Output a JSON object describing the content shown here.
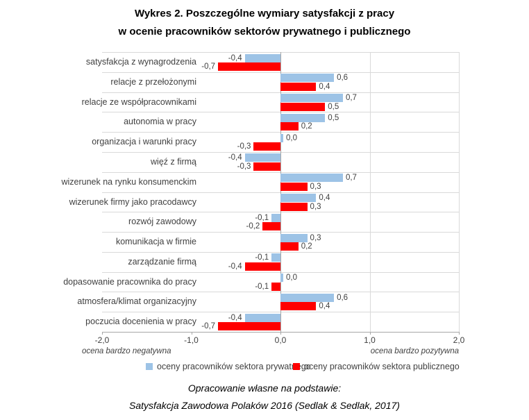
{
  "title": {
    "line1": "Wykres 2. Poszczególne wymiary satysfakcji z pracy",
    "line2": "w ocenie pracowników sektorów prywatnego i publicznego"
  },
  "chart_data": {
    "type": "bar",
    "orientation": "horizontal",
    "title": "Wykres 2. Poszczególne wymiary satysfakcji z pracy w ocenie pracowników sektorów prywatnego i publicznego",
    "categories": [
      "satysfakcja z wynagrodzenia",
      "relacje z przełożonymi",
      "relacje ze współpracownikami",
      "autonomia w pracy",
      "organizacja i warunki pracy",
      "więź z firmą",
      "wizerunek na rynku konsumenckim",
      "wizerunek firmy jako pracodawcy",
      "rozwój zawodowy",
      "komunikacja w firmie",
      "zarządzanie firmą",
      "dopasowanie pracownika do pracy",
      "atmosfera/klimat organizacyjny",
      "poczucia docenienia w pracy"
    ],
    "series": [
      {
        "name": "oceny pracowników sektora prywatnego",
        "color": "#9DC3E6",
        "values": [
          -0.4,
          0.6,
          0.7,
          0.5,
          0.0,
          -0.4,
          0.7,
          0.4,
          -0.1,
          0.3,
          -0.1,
          0.0,
          0.6,
          -0.4
        ],
        "labels": [
          "-0,4",
          "0,6",
          "0,7",
          "0,5",
          "0,0",
          "-0,4",
          "0,7",
          "0,4",
          "-0,1",
          "0,3",
          "-0,1",
          "0,0",
          "0,6",
          "-0,4"
        ]
      },
      {
        "name": "oceny pracowników sektora publicznego",
        "color": "#FF0000",
        "values": [
          -0.7,
          0.4,
          0.5,
          0.2,
          -0.3,
          -0.3,
          0.3,
          0.3,
          -0.2,
          0.2,
          -0.4,
          -0.1,
          0.4,
          -0.7
        ],
        "labels": [
          "-0,7",
          "0,4",
          "0,5",
          "0,2",
          "-0,3",
          "-0,3",
          "0,3",
          "0,3",
          "-0,2",
          "0,2",
          "-0,4",
          "-0,1",
          "0,4",
          "-0,7"
        ]
      }
    ],
    "xlim": [
      -2.0,
      2.0
    ],
    "x_ticks": [
      "-2,0",
      "-1,0",
      "0,0",
      "1,0",
      "2,0"
    ],
    "x_tick_values": [
      -2,
      -1,
      0,
      1,
      2
    ],
    "grid": "partial",
    "legend_position": "bottom",
    "axis_note_left": "ocena bardzo negatywna",
    "axis_note_right": "ocena bardzo pozytywna"
  },
  "legend": [
    {
      "label": "oceny pracowników sektora prywatnego",
      "color": "#9DC3E6"
    },
    {
      "label": "oceny pracowników sektora publicznego",
      "color": "#FF0000"
    }
  ],
  "footer": {
    "line1": "Opracowanie własne na podstawie:",
    "line2": "Satysfakcja Zawodowa Polaków 2016 (Sedlak & Sedlak, 2017)"
  },
  "colors": {
    "private_series": "#9DC3E6",
    "public_series": "#FF0000",
    "gridline": "#D9D9D9",
    "axis_line": "#A6A6A6",
    "label_text": "#3F3F3F",
    "title_text": "#000000"
  }
}
